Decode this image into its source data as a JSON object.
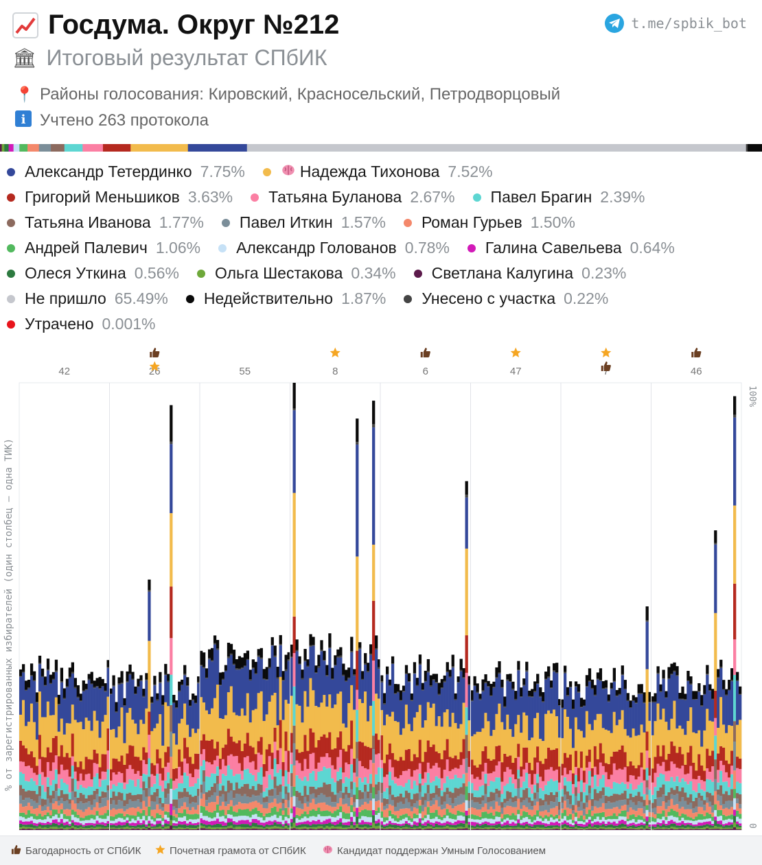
{
  "header": {
    "title": "Госдума. Округ №212",
    "subtitle": "Итоговый результат СПбИК",
    "districts": "Районы голосования: Кировский, Красносельский, Петродворцовый",
    "protocols": "Учтено 263 протокола",
    "telegram": "t.me/spbik_bot"
  },
  "legend": {
    "items": [
      {
        "name": "Александр Тетердинко",
        "pct": "7.75%",
        "color": "#34489a",
        "badge": ""
      },
      {
        "name": "Надежда Тихонова",
        "pct": "7.52%",
        "color": "#f2bb4c",
        "badge": "brain"
      },
      {
        "name": "Григорий Меньшиков",
        "pct": "3.63%",
        "color": "#b5291f",
        "badge": ""
      },
      {
        "name": "Татьяна Буланова",
        "pct": "2.67%",
        "color": "#fb7fa3",
        "badge": ""
      },
      {
        "name": "Павел Брагин",
        "pct": "2.39%",
        "color": "#5dd6d2",
        "badge": ""
      },
      {
        "name": "Татьяна Иванова",
        "pct": "1.77%",
        "color": "#8c6a5e",
        "badge": ""
      },
      {
        "name": "Павел Иткин",
        "pct": "1.57%",
        "color": "#7b8e99",
        "badge": ""
      },
      {
        "name": "Роман Гурьев",
        "pct": "1.50%",
        "color": "#f4886b",
        "badge": ""
      },
      {
        "name": "Андрей Палевич",
        "pct": "1.06%",
        "color": "#52b95e",
        "badge": ""
      },
      {
        "name": "Александр Голованов",
        "pct": "0.78%",
        "color": "#c6e1f6",
        "badge": ""
      },
      {
        "name": "Галина Савельева",
        "pct": "0.64%",
        "color": "#d21ab8",
        "badge": ""
      },
      {
        "name": "Олеся Уткина",
        "pct": "0.56%",
        "color": "#2d7a40",
        "badge": ""
      },
      {
        "name": "Ольга Шестакова",
        "pct": "0.34%",
        "color": "#6ea83a",
        "badge": ""
      },
      {
        "name": "Светлана Калугина",
        "pct": "0.23%",
        "color": "#5c1a4b",
        "badge": ""
      },
      {
        "name": "Не пришло",
        "pct": "65.49%",
        "color": "#c5c7cd",
        "badge": ""
      },
      {
        "name": "Недействительно",
        "pct": "1.87%",
        "color": "#0a0a0a",
        "badge": ""
      },
      {
        "name": "Унесено с участка",
        "pct": "0.22%",
        "color": "#444444",
        "badge": ""
      },
      {
        "name": "Утрачено",
        "pct": "0.001%",
        "color": "#e8141c",
        "badge": ""
      }
    ]
  },
  "chart_data": {
    "type": "bar",
    "stacked": true,
    "yrange_percent": [
      0,
      100
    ],
    "yaxis_right_top": "100%",
    "yaxis_right_bottom": "0",
    "ylabel": "% от зарегистрированных избирателей (один столбец — одна ТИК)",
    "tiks": [
      {
        "label": "42",
        "awards": [],
        "turnout": 34.5
      },
      {
        "label": "26",
        "awards": [
          "thanks",
          "star"
        ],
        "turnout": 33.0
      },
      {
        "label": "55",
        "awards": [],
        "turnout": 39.5
      },
      {
        "label": "8",
        "awards": [
          "star"
        ],
        "turnout": 40.0
      },
      {
        "label": "6",
        "awards": [
          "thanks"
        ],
        "turnout": 35.0
      },
      {
        "label": "47",
        "awards": [
          "star"
        ],
        "turnout": 33.5
      },
      {
        "label": "7",
        "awards": [
          "star",
          "thanks"
        ],
        "turnout": 32.5
      },
      {
        "label": "46",
        "awards": [
          "thanks"
        ],
        "turnout": 34.0
      }
    ],
    "series_order": [
      "Светлана Калугина",
      "Ольга Шестакова",
      "Олеся Уткина",
      "Галина Савельева",
      "Александр Голованов",
      "Андрей Палевич",
      "Роман Гурьев",
      "Павел Иткин",
      "Татьяна Иванова",
      "Павел Брагин",
      "Татьяна Буланова",
      "Григорий Меньшиков",
      "Надежда Тихонова",
      "Александр Тетердинко",
      "Унесено с участка",
      "Недействительно"
    ]
  },
  "footer": {
    "thanks": "Багодарность от СПбИК",
    "star": "Почетная грамота от СПбИК",
    "brain": "Кандидат поддержан Умным Голосованием"
  }
}
